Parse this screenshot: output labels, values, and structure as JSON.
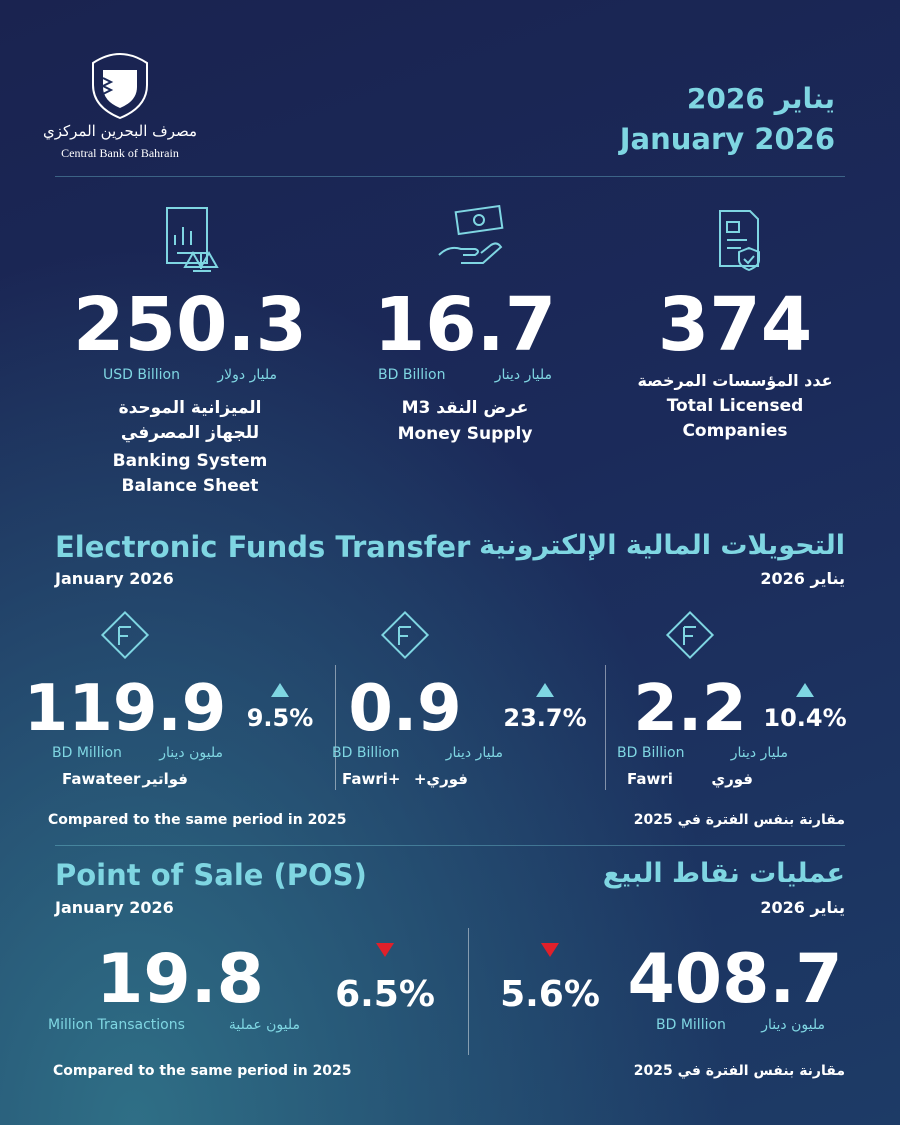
{
  "header": {
    "logo_arabic": "مصرف البحرين المركزي",
    "logo_english": "Central Bank of Bahrain",
    "date_arabic": "يناير 2026",
    "date_english": "January 2026"
  },
  "stats": [
    {
      "value": 250.3,
      "unit_en": "USD Billion",
      "unit_ar": "مليار دولار",
      "label_ar": "الميزانية الموحدة للجهاز المصرفي",
      "label_en": "Banking System Balance Sheet"
    },
    {
      "value": 16.7,
      "unit_en": "BD Billion",
      "unit_ar": "مليار دينار",
      "label_ar": "عرض النقد M3",
      "label_en": "Money Supply"
    },
    {
      "value": 374,
      "label_ar": "عدد المؤسسات المرخصة",
      "label_en": "Total Licensed Companies"
    }
  ],
  "eft": {
    "title_en": "Electronic Funds Transfer",
    "title_ar": "التحويلات المالية الإلكترونية",
    "period_en": "January 2026",
    "period_ar": "يناير 2026",
    "items": [
      {
        "value": 119.9,
        "unit_en": "BD Million",
        "unit_ar": "مليون دينار",
        "name_en": "Fawateer",
        "name_ar": "فواتير",
        "change": "9.5%",
        "direction": "up"
      },
      {
        "value": 0.9,
        "unit_en": "BD Billion",
        "unit_ar": "مليار دينار",
        "name_en": "Fawri+",
        "name_ar": "فوري+",
        "change": "23.7%",
        "direction": "up"
      },
      {
        "value": 2.2,
        "unit_en": "BD Billion",
        "unit_ar": "مليار دينار",
        "name_en": "Fawri",
        "name_ar": "فوري",
        "change": "10.4%",
        "direction": "up"
      }
    ],
    "note_en": "Compared to the same period in 2025",
    "note_ar": "مقارنة بنفس الفترة في 2025"
  },
  "pos": {
    "title_en": "Point of Sale (POS)",
    "title_ar": "عمليات نقاط البيع",
    "period_en": "January 2026",
    "period_ar": "يناير 2026",
    "items": [
      {
        "value": 19.8,
        "unit_en": "Million Transactions",
        "unit_ar": "مليون عملية",
        "change": "6.5%",
        "direction": "down"
      },
      {
        "value": 408.7,
        "unit_en": "BD Million",
        "unit_ar": "مليون دينار",
        "change": "5.6%",
        "direction": "down"
      }
    ],
    "note_en": "Compared to the same period in 2025",
    "note_ar": "مقارنة بنفس الفترة في 2025"
  }
}
